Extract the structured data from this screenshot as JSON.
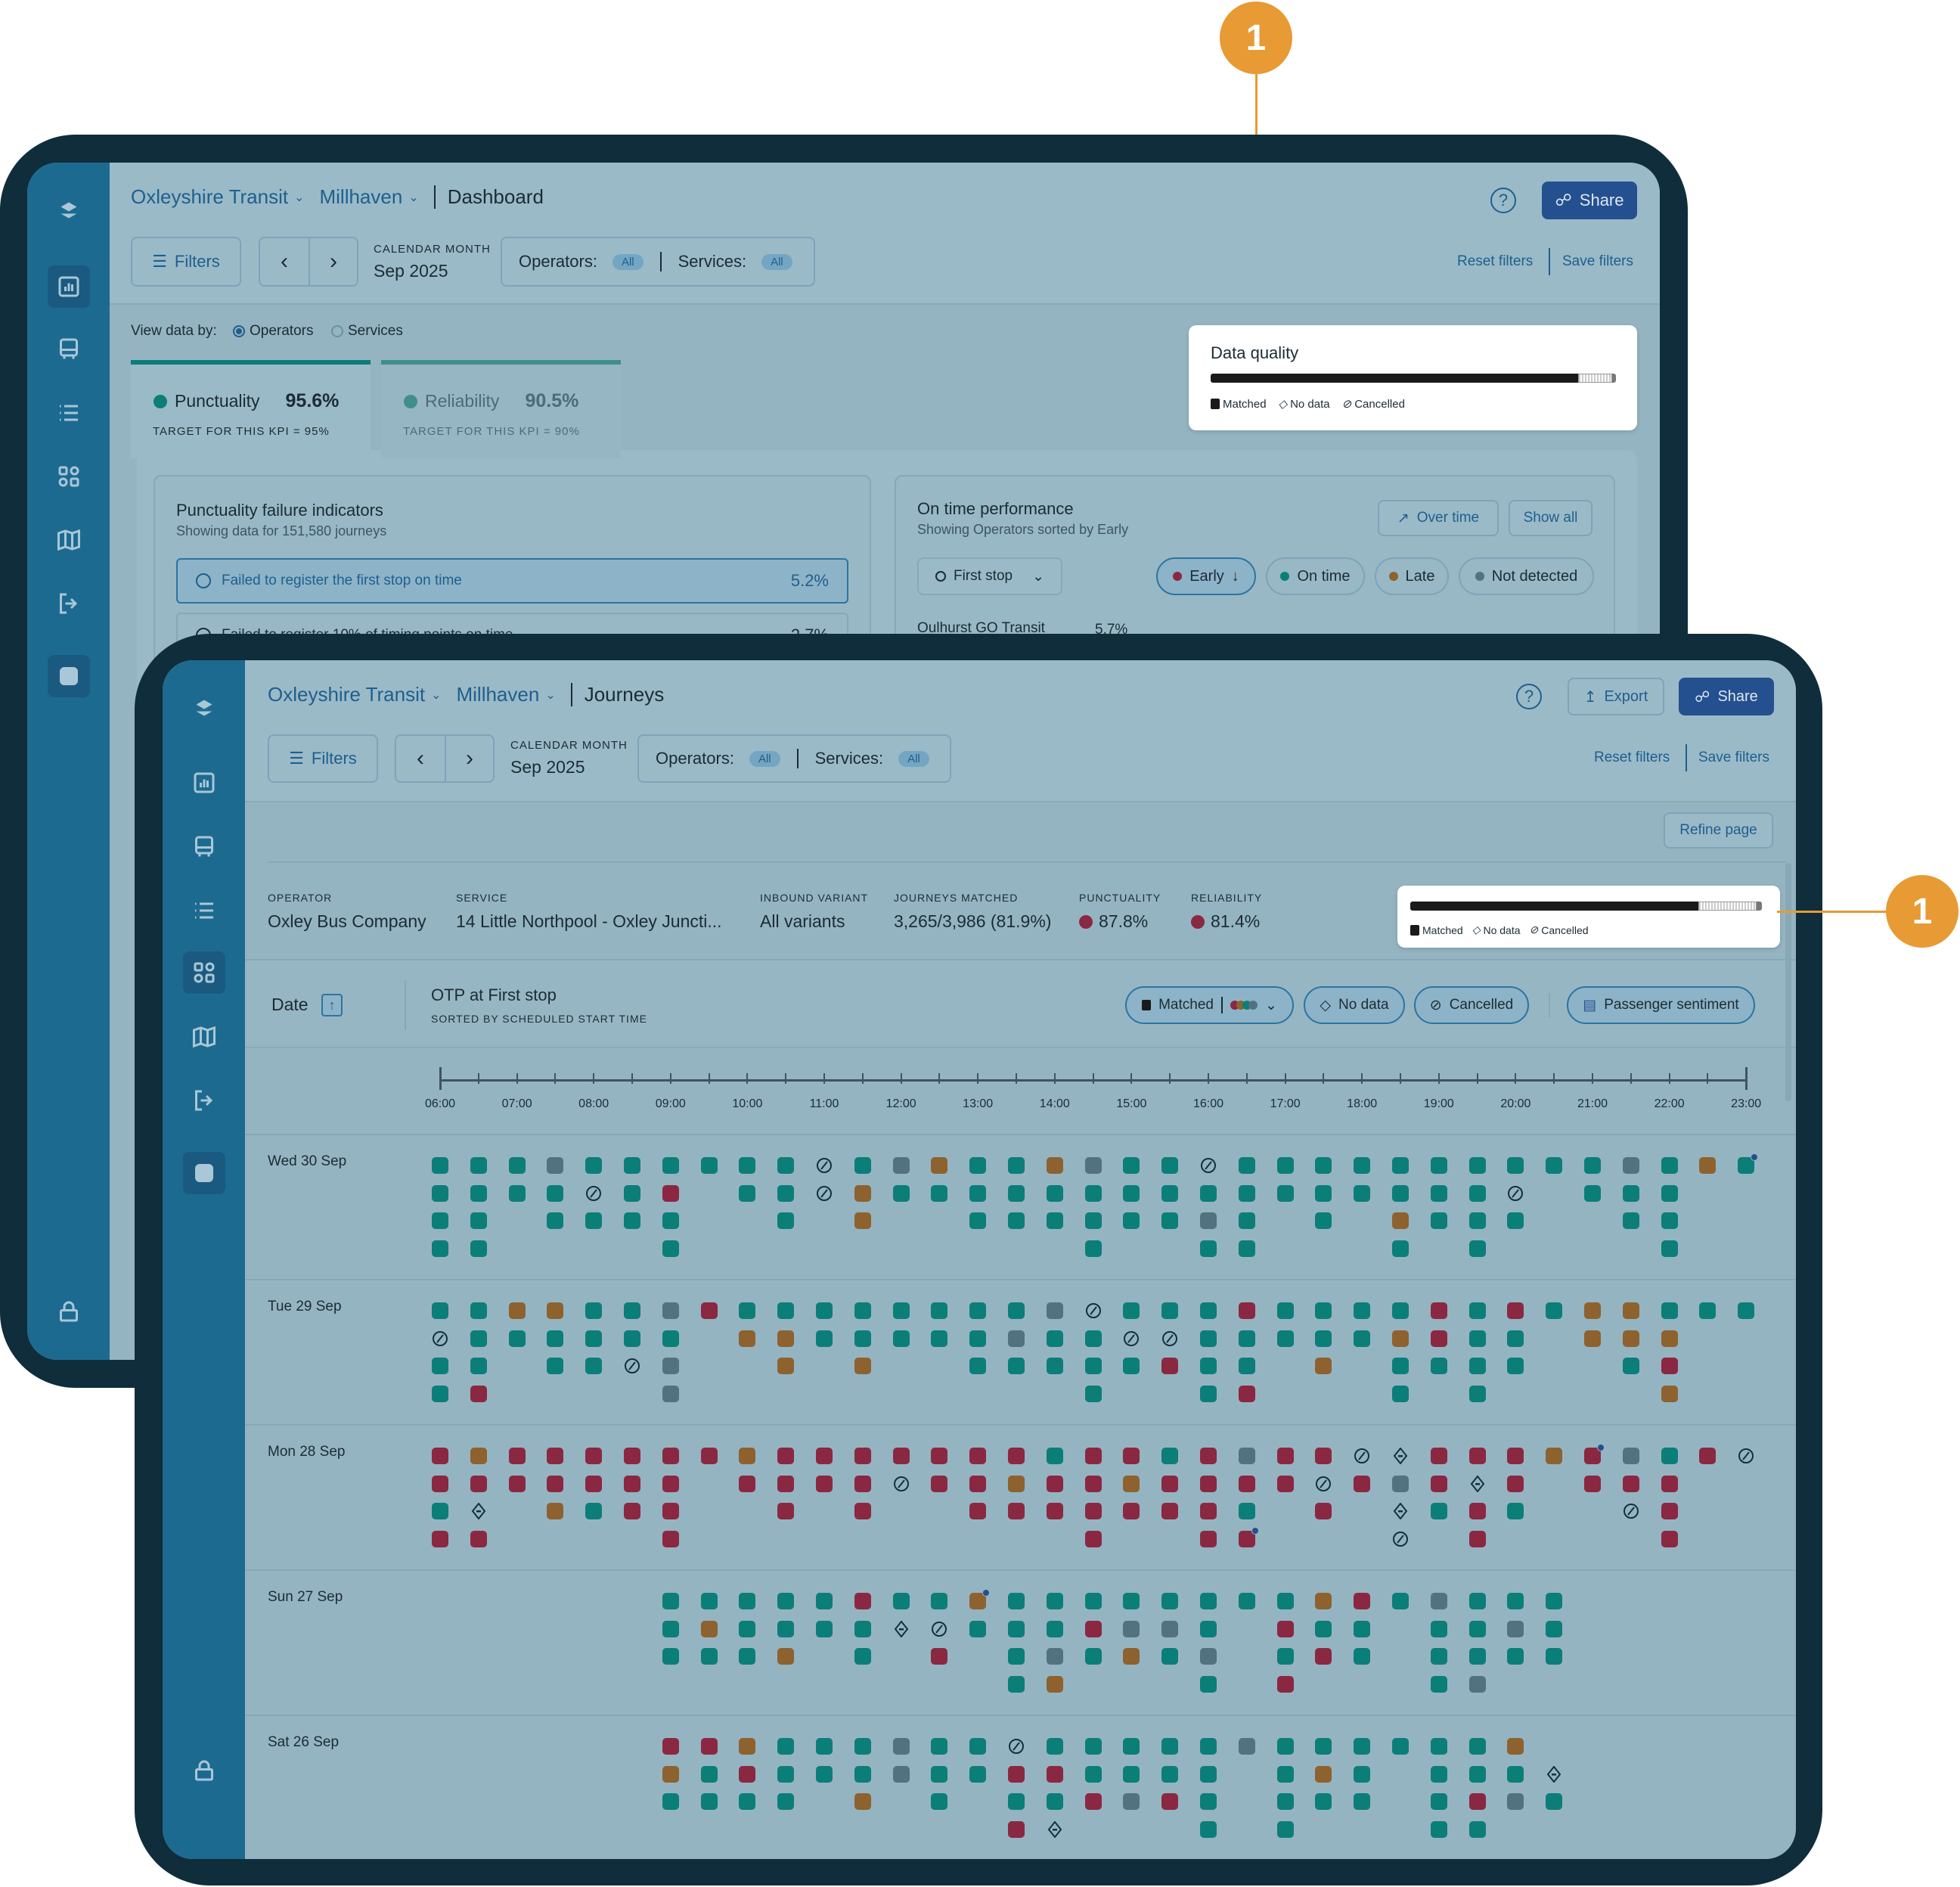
{
  "callouts": [
    "1",
    "1"
  ],
  "colors": {
    "on_time": "#0b7e78",
    "early": "#8a2842",
    "late": "#8d622e",
    "not_detected": "#52727f",
    "sentiment": "#24508f",
    "accent": "#e89a34",
    "brand": "#1d6a91"
  },
  "sidebar_icons": [
    "logo-icon",
    "bar-chart-icon",
    "bus-icon",
    "list-icon",
    "apps-icon",
    "map-icon",
    "exit-icon",
    "app-tile-icon",
    "lock-icon"
  ],
  "dashboard": {
    "breadcrumb": {
      "org": "Oxleyshire Transit",
      "area": "Millhaven",
      "page": "Dashboard"
    },
    "filters": "Filters",
    "period_label": "CALENDAR MONTH",
    "period_value": "Sep 2025",
    "operators_label": "Operators:",
    "operators_value": "All",
    "services_label": "Services:",
    "services_value": "All",
    "share": "Share",
    "reset": "Reset filters",
    "save": "Save filters",
    "view_by_label": "View data by:",
    "view_by_options": [
      "Operators",
      "Services"
    ],
    "view_by_selected": "Operators",
    "kpis": [
      {
        "label": "Punctuality",
        "value": "95.6%",
        "target": "TARGET FOR THIS KPI = 95%"
      },
      {
        "label": "Reliability",
        "value": "90.5%",
        "target": "TARGET FOR THIS KPI = 90%"
      }
    ],
    "failure_card": {
      "title": "Punctuality failure indicators",
      "subtitle": "Showing data for 151,580 journeys",
      "items": [
        {
          "label": "Failed to register the first stop on time",
          "value": "5.2%"
        },
        {
          "label": "Failed to register 10% of timing points on time",
          "value": "2.7%"
        }
      ]
    },
    "otp_card": {
      "title": "On time performance",
      "subtitle": "Showing Operators sorted by Early",
      "over_time": "Over time",
      "show_all": "Show all",
      "stop_select": "First stop",
      "chips": [
        "Early",
        "On time",
        "Late",
        "Not detected"
      ],
      "rows": [
        {
          "name": "Oulhurst GO Transit",
          "value": "5.7%"
        }
      ]
    },
    "data_quality": {
      "title": "Data quality",
      "legend": [
        "Matched",
        "No data",
        "Cancelled"
      ],
      "matched_pct": 90.7,
      "no_data_pct": 8.3,
      "cancelled_pct": 1.0
    }
  },
  "journeys": {
    "breadcrumb": {
      "org": "Oxleyshire Transit",
      "area": "Millhaven",
      "page": "Journeys"
    },
    "filters": "Filters",
    "period_label": "CALENDAR MONTH",
    "period_value": "Sep 2025",
    "operators_label": "Operators:",
    "operators_value": "All",
    "services_label": "Services:",
    "services_value": "All",
    "export": "Export",
    "share": "Share",
    "reset": "Reset filters",
    "save": "Save filters",
    "refine": "Refine page",
    "info": [
      {
        "label": "OPERATOR",
        "value": "Oxley Bus Company"
      },
      {
        "label": "SERVICE",
        "value": "14 Little Northpool - Oxley Juncti..."
      },
      {
        "label": "INBOUND VARIANT",
        "value": "All variants"
      },
      {
        "label": "JOURNEYS MATCHED",
        "value": "3,265/3,986 (81.9%)"
      },
      {
        "label": "PUNCTUALITY",
        "value": "87.8%"
      },
      {
        "label": "RELIABILITY",
        "value": "81.4%"
      }
    ],
    "data_quality": {
      "legend": [
        "Matched",
        "No data",
        "Cancelled"
      ],
      "matched_pct": 81.9,
      "no_data_pct": 16.5,
      "cancelled_pct": 1.6
    },
    "toolbar": {
      "date": "Date",
      "otp_title": "OTP at First stop",
      "otp_sub": "SORTED BY SCHEDULED START TIME",
      "matched": "Matched",
      "no_data": "No data",
      "cancelled": "Cancelled",
      "sentiment": "Passenger sentiment"
    },
    "timeline": [
      "06:00",
      "07:00",
      "08:00",
      "09:00",
      "10:00",
      "11:00",
      "12:00",
      "13:00",
      "14:00",
      "15:00",
      "16:00",
      "17:00",
      "18:00",
      "19:00",
      "20:00",
      "21:00",
      "22:00",
      "23:00"
    ],
    "legend_codes": {
      "g": "on time",
      "r": "early",
      "o": "late",
      "s": "not detected",
      "c": "cancelled",
      "n": "no data",
      ".": "no journey",
      "uppercase": "passenger sentiment"
    },
    "days": [
      {
        "label": "Wed 30 Sep",
        "rows": [
          "gggsggggggcgsoggosggcggggggggggsgoGg",
          "ggggcgr.ggcoggggggggggggggggc.ggg..",
          "gg.gggg..g.o..ggggggsg.g.oggg..gg..",
          "gg....g..........g..gg...g.g....g.."
        ]
      },
      {
        "label": "Tue 29 Sep",
        "rows": [
          "ggooggsrggggggggscgggrggggrgrgooggg",
          "cgggggg.ooggggg sggccgggggorgg.ooo..",
          "gg.ggcs..o.o..gggggrgg.o.gggg..gr..",
          "gr....s..........g..gr...g.g....o.."
        ]
      },
      {
        "label": "Mon 28 Sep",
        "rows": [
          "rorrrrrrorrrrrrrgrrgrsrrcnrrroRsgrc",
          "rrrrrrr.rrrrcrrorrorrrrcrsrnr.rrr..",
          "gn.ogrr..r.r..rrrrrrrg.r.ngrg..cr..",
          "rr....r..........r..rR...c.r....r.."
        ]
      },
      {
        "label": "Sun 27 Sep",
        "rows": [
          "......gggggrggOggggggggorgsggg.....",
          "......goggggncgggrssg.rgg.ggsg.....",
          "......gggo.g.r.gsgogs.grg.gggg.....",
          "...............go...g.r...gs......."
        ]
      },
      {
        "label": "Sat 26 Sep",
        "rows": [
          "......rrogggsggcgggggsggggggo.....",
          "......ogrgggsggrrgggg.gog.gggn.....",
          "......gggg.o.g.ggrsrg.ggg.grsg.....",
          "...............rn...g.g...gg......."
        ]
      }
    ]
  }
}
